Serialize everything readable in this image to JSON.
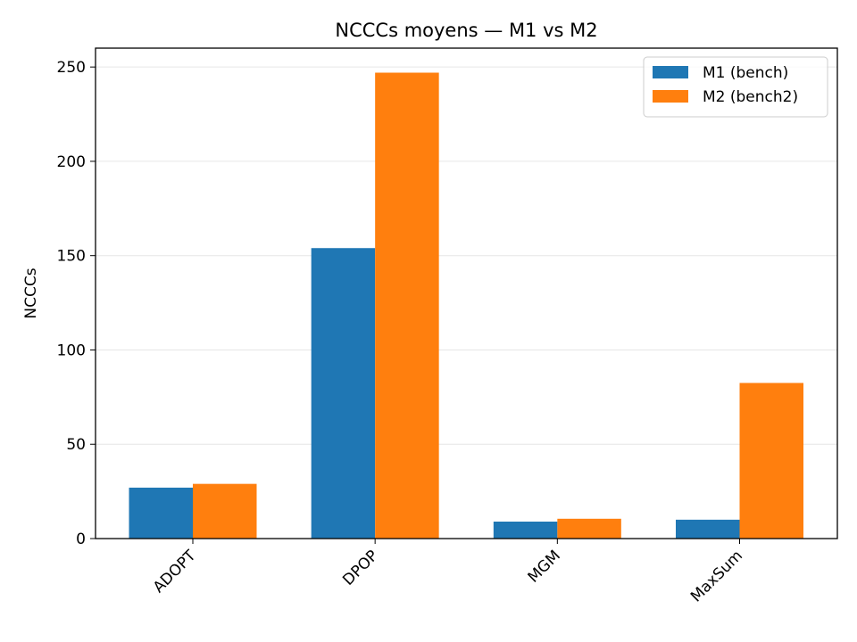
{
  "chart_data": {
    "type": "bar",
    "title": "NCCCs moyens — M1 vs M2",
    "xlabel": "",
    "ylabel": "NCCCs",
    "categories": [
      "ADOPT",
      "DPOP",
      "MGM",
      "MaxSum"
    ],
    "series": [
      {
        "name": "M1 (bench)",
        "values": [
          27,
          154,
          9,
          10
        ],
        "color": "#1f77b4"
      },
      {
        "name": "M2 (bench2)",
        "values": [
          29,
          247,
          10.5,
          82.5
        ],
        "color": "#ff7f0e"
      }
    ],
    "ylim": [
      0,
      260
    ],
    "yticks": [
      0,
      50,
      100,
      150,
      200,
      250
    ],
    "grid": "horizontal",
    "legend": "top-right"
  }
}
